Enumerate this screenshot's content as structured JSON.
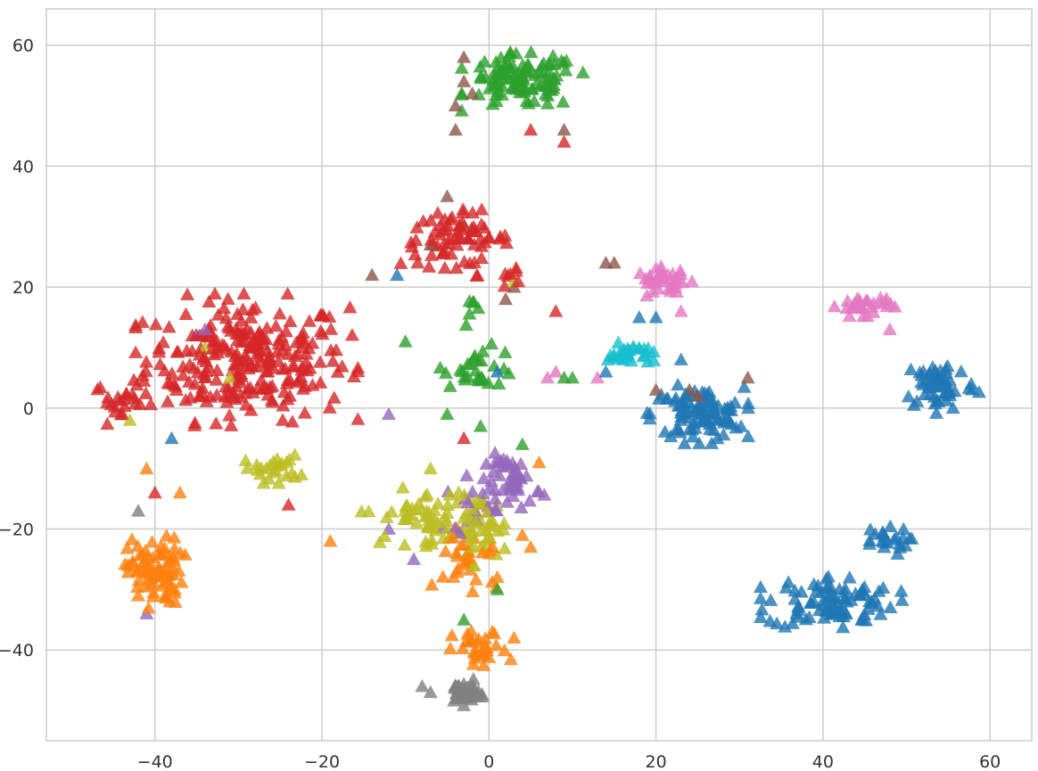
{
  "chart_data": {
    "type": "scatter",
    "title": "",
    "xlabel": "",
    "ylabel": "",
    "xlim": [
      -53,
      65
    ],
    "ylim": [
      -55,
      66
    ],
    "xticks": [
      -40,
      -20,
      0,
      20,
      40,
      60
    ],
    "yticks": [
      -40,
      -20,
      0,
      20,
      40,
      60
    ],
    "xtick_labels": [
      "−40",
      "−20",
      "0",
      "20",
      "40",
      "60"
    ],
    "ytick_labels": [
      "−40",
      "−20",
      "0",
      "20",
      "40",
      "60"
    ],
    "grid": true,
    "marker": "triangle-up",
    "series": [
      {
        "color": "#d62728",
        "clusters": [
          {
            "center": [
              -29,
              8
            ],
            "spread": [
              11,
              9
            ],
            "count": 260
          },
          {
            "center": [
              -44,
              1
            ],
            "spread": [
              3,
              3
            ],
            "count": 22
          },
          {
            "center": [
              -4,
              28
            ],
            "spread": [
              6,
              4
            ],
            "count": 70
          },
          {
            "center": [
              2,
              22
            ],
            "spread": [
              3,
              3
            ],
            "count": 8
          }
        ],
        "points": [
          [
            9,
            44
          ],
          [
            5,
            46
          ],
          [
            8,
            16
          ],
          [
            -40,
            -14
          ],
          [
            -24,
            -16
          ],
          [
            -3,
            -5
          ]
        ]
      },
      {
        "color": "#2ca02c",
        "clusters": [
          {
            "center": [
              4,
              54
            ],
            "spread": [
              6,
              4
            ],
            "count": 110
          },
          {
            "center": [
              -1,
              7
            ],
            "spread": [
              4,
              3
            ],
            "count": 28
          },
          {
            "center": [
              -2,
              16
            ],
            "spread": [
              1,
              2
            ],
            "count": 6
          }
        ],
        "points": [
          [
            -10,
            11
          ],
          [
            9,
            5
          ],
          [
            10,
            5
          ],
          [
            -5,
            -1
          ],
          [
            1,
            -30
          ],
          [
            -3,
            -35
          ],
          [
            4,
            -6
          ],
          [
            -1,
            -3
          ]
        ]
      },
      {
        "color": "#1f77b4",
        "clusters": [
          {
            "center": [
              25,
              -1
            ],
            "spread": [
              5,
              4
            ],
            "count": 100
          },
          {
            "center": [
              54,
              4
            ],
            "spread": [
              4,
              4
            ],
            "count": 60
          },
          {
            "center": [
              41,
              -32
            ],
            "spread": [
              7,
              4
            ],
            "count": 90
          },
          {
            "center": [
              47,
              -22
            ],
            "spread": [
              3,
              2
            ],
            "count": 22
          }
        ],
        "points": [
          [
            20,
            15
          ],
          [
            18,
            15
          ],
          [
            -38,
            -5
          ],
          [
            -11,
            22
          ],
          [
            23,
            8
          ],
          [
            1,
            6
          ],
          [
            14,
            6
          ]
        ]
      },
      {
        "color": "#ff7f0e",
        "clusters": [
          {
            "center": [
              -40,
              -27
            ],
            "spread": [
              3,
              5
            ],
            "count": 85
          },
          {
            "center": [
              -1,
              -40
            ],
            "spread": [
              3,
              3
            ],
            "count": 30
          },
          {
            "center": [
              -2,
              -25
            ],
            "spread": [
              4,
              6
            ],
            "count": 30
          }
        ],
        "points": [
          [
            -37,
            -14
          ],
          [
            -41,
            -10
          ],
          [
            -19,
            -22
          ],
          [
            6,
            -9
          ],
          [
            4,
            -21
          ],
          [
            5,
            -23
          ],
          [
            3,
            -38
          ]
        ]
      },
      {
        "color": "#bcbd22",
        "clusters": [
          {
            "center": [
              -26,
              -10
            ],
            "spread": [
              3,
              2
            ],
            "count": 25
          },
          {
            "center": [
              -8,
              -18
            ],
            "spread": [
              6,
              4
            ],
            "count": 55
          },
          {
            "center": [
              -1,
              -20
            ],
            "spread": [
              3,
              5
            ],
            "count": 45
          }
        ],
        "points": [
          [
            -43,
            -2
          ],
          [
            -34,
            10
          ],
          [
            -31,
            5
          ],
          [
            3,
            21
          ],
          [
            -7,
            -10
          ]
        ]
      },
      {
        "color": "#9467bd",
        "clusters": [
          {
            "center": [
              3,
              -12
            ],
            "spread": [
              3,
              4
            ],
            "count": 45
          },
          {
            "center": [
              -2,
              -16
            ],
            "spread": [
              3,
              4
            ],
            "count": 18
          }
        ],
        "points": [
          [
            -34,
            13
          ],
          [
            -35,
            12
          ],
          [
            -12,
            -1
          ],
          [
            -12,
            -20
          ],
          [
            -9,
            -25
          ],
          [
            -41,
            -34
          ]
        ]
      },
      {
        "color": "#e377c2",
        "clusters": [
          {
            "center": [
              21,
              21
            ],
            "spread": [
              3,
              2
            ],
            "count": 35
          },
          {
            "center": [
              45,
              17
            ],
            "spread": [
              3,
              1.5
            ],
            "count": 32
          }
        ],
        "points": [
          [
            13,
            5
          ],
          [
            8,
            6
          ],
          [
            7,
            5
          ],
          [
            48,
            13
          ],
          [
            23,
            16
          ]
        ]
      },
      {
        "color": "#17becf",
        "clusters": [
          {
            "center": [
              17,
              9
            ],
            "spread": [
              2.5,
              1.5
            ],
            "count": 30
          }
        ],
        "points": []
      },
      {
        "color": "#8c564b",
        "clusters": [],
        "points": [
          [
            -3,
            58
          ],
          [
            -4,
            50
          ],
          [
            -3,
            54
          ],
          [
            -2,
            52
          ],
          [
            -4,
            46
          ],
          [
            -5,
            35
          ],
          [
            9,
            46
          ],
          [
            2,
            18
          ],
          [
            3,
            20
          ],
          [
            15,
            24
          ],
          [
            14,
            24
          ],
          [
            20,
            3
          ],
          [
            24,
            3
          ],
          [
            25,
            2
          ],
          [
            31,
            5
          ],
          [
            -3,
            30
          ],
          [
            -14,
            22
          ],
          [
            -7,
            27
          ]
        ]
      },
      {
        "color": "#7f7f7f",
        "clusters": [
          {
            "center": [
              -3,
              -47
            ],
            "spread": [
              1.8,
              1.8
            ],
            "count": 40
          }
        ],
        "points": [
          [
            -8,
            -46
          ],
          [
            -7,
            -47
          ],
          [
            -42,
            -17
          ]
        ]
      }
    ]
  }
}
